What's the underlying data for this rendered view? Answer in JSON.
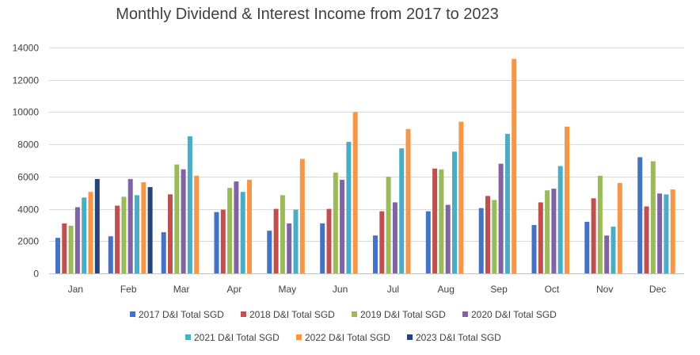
{
  "chart_data": {
    "type": "bar",
    "title": "Monthly Dividend & Interest Income from 2017 to 2023",
    "xlabel": "",
    "ylabel": "",
    "ylim": [
      0,
      14000
    ],
    "yticks": [
      0,
      2000,
      4000,
      6000,
      8000,
      10000,
      12000,
      14000
    ],
    "grid": true,
    "legend": "bottom",
    "categories": [
      "Jan",
      "Feb",
      "Mar",
      "Apr",
      "May",
      "Jun",
      "Jul",
      "Aug",
      "Sep",
      "Oct",
      "Nov",
      "Dec"
    ],
    "series": [
      {
        "name": "2017 D&I Total SGD",
        "color": "#4472c4",
        "values": [
          2200,
          2300,
          2550,
          3800,
          2650,
          3100,
          2350,
          3850,
          4050,
          3000,
          3200,
          7200
        ]
      },
      {
        "name": "2018 D&I Total SGD",
        "color": "#c0504d",
        "values": [
          3100,
          4200,
          4900,
          3950,
          4000,
          4000,
          3850,
          6500,
          4800,
          4400,
          4650,
          4150
        ]
      },
      {
        "name": "2019 D&I Total SGD",
        "color": "#9bbb59",
        "values": [
          2950,
          4750,
          6750,
          5300,
          4850,
          6250,
          6000,
          6450,
          4550,
          5150,
          6050,
          6950
        ]
      },
      {
        "name": "2020 D&I Total SGD",
        "color": "#8064a2",
        "values": [
          4100,
          5850,
          6450,
          5700,
          3100,
          5800,
          4400,
          4250,
          6800,
          5250,
          2350,
          4950
        ]
      },
      {
        "name": "2021 D&I Total SGD",
        "color": "#4bacc6",
        "values": [
          4700,
          4850,
          8500,
          5050,
          3950,
          8150,
          7750,
          7550,
          8650,
          6650,
          2900,
          4900
        ]
      },
      {
        "name": "2022 D&I Total SGD",
        "color": "#f79646",
        "values": [
          5050,
          5650,
          6050,
          5800,
          7100,
          10000,
          8950,
          9400,
          13300,
          9100,
          5600,
          5200
        ]
      },
      {
        "name": "2023 D&I Total SGD",
        "color": "#264478",
        "values": [
          5850,
          5350,
          null,
          null,
          null,
          null,
          null,
          null,
          null,
          null,
          null,
          null
        ]
      }
    ]
  }
}
